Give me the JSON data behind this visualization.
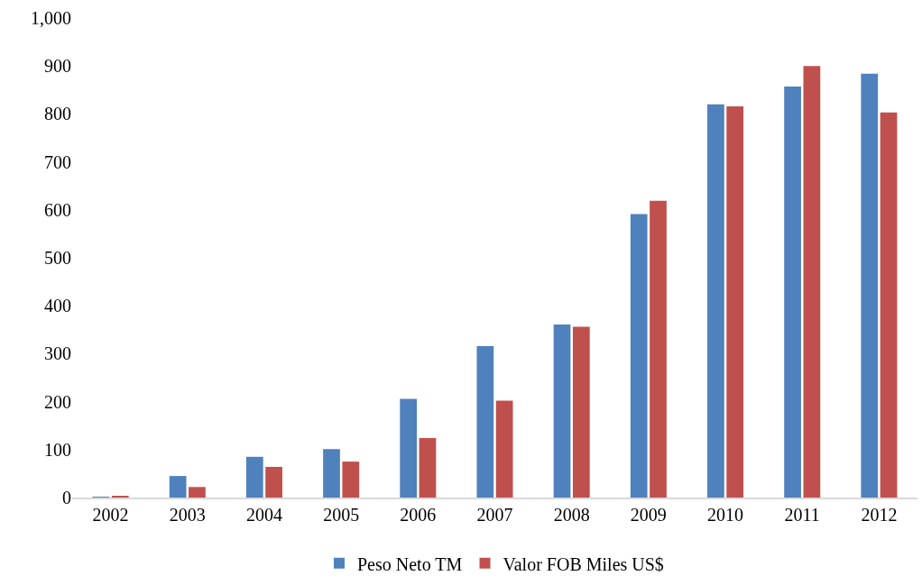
{
  "chart_data": {
    "type": "bar",
    "categories": [
      "2002",
      "2003",
      "2004",
      "2005",
      "2006",
      "2007",
      "2008",
      "2009",
      "2010",
      "2011",
      "2012"
    ],
    "series": [
      {
        "name": "Peso Neto TM",
        "color": "#4f81bd",
        "values": [
          1,
          45,
          85,
          101,
          206,
          316,
          361,
          591,
          820,
          857,
          884
        ]
      },
      {
        "name": "Valor FOB Miles US$",
        "color": "#c0504d",
        "values": [
          3,
          22,
          64,
          75,
          124,
          202,
          356,
          619,
          816,
          900,
          803
        ]
      }
    ],
    "ylim": [
      0,
      1000
    ],
    "yticks": [
      0,
      100,
      200,
      300,
      400,
      500,
      600,
      700,
      800,
      900,
      {
        "value": 1000,
        "label": "1,000"
      }
    ],
    "grid": false,
    "legend": "bottom"
  }
}
